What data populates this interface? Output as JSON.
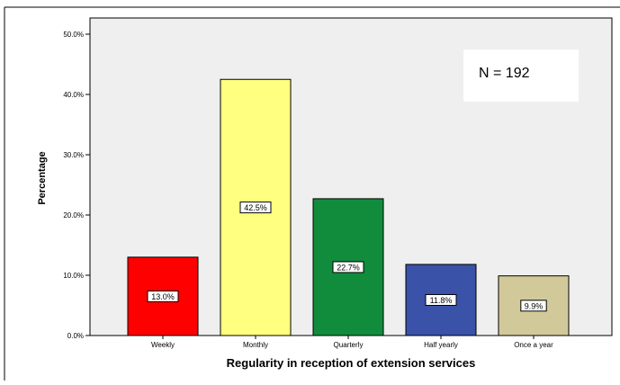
{
  "chart_data": {
    "type": "bar",
    "categories": [
      "Weekly",
      "Monthly",
      "Quarterly",
      "Half yearly",
      "Once a year"
    ],
    "values": [
      13.0,
      42.5,
      22.7,
      11.8,
      9.9
    ],
    "data_labels": [
      "13.0%",
      "42.5%",
      "22.7%",
      "11.8%",
      "9.9%"
    ],
    "bar_colors": [
      "#ff0000",
      "#ffff80",
      "#118c3c",
      "#3a52a8",
      "#d2c99a"
    ],
    "xlabel": "Regularity in reception of extension services",
    "ylabel": "Percentage",
    "ylim": [
      0,
      50
    ],
    "yticks": [
      0,
      10,
      20,
      30,
      40,
      50
    ],
    "ytick_labels": [
      "0.0%",
      "10.0%",
      "20.0%",
      "30.0%",
      "40.0%",
      "50.0%"
    ],
    "annotation": "N = 192",
    "plot_background": "#efefef",
    "grid": false
  }
}
